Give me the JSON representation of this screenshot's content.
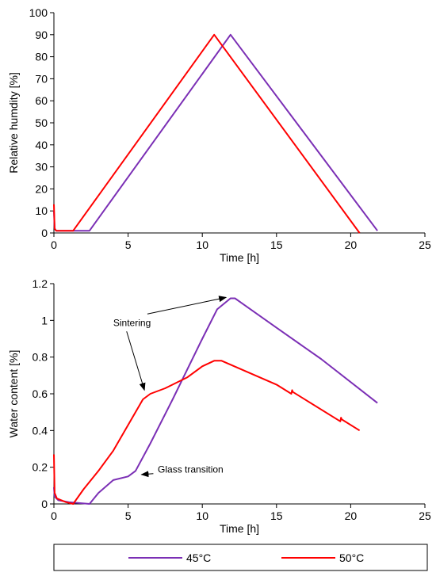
{
  "colors": {
    "c45": "#7b2fb5",
    "c50": "#ff0000"
  },
  "chart_data": [
    {
      "type": "line",
      "xlabel": "Time [h]",
      "ylabel": "Relative humdity [%]",
      "xlim": [
        0,
        25
      ],
      "ylim": [
        0,
        100
      ],
      "xticks": [
        "0",
        "5",
        "10",
        "15",
        "20",
        "25"
      ],
      "yticks": [
        "0",
        "10",
        "20",
        "30",
        "40",
        "50",
        "60",
        "70",
        "80",
        "90",
        "100"
      ],
      "grid": false,
      "series": [
        {
          "name": "45°C",
          "color": "#7b2fb5",
          "x": [
            0,
            0.05,
            0.15,
            2.4,
            11.9,
            21.8
          ],
          "y": [
            10,
            2,
            1,
            1,
            90,
            1
          ]
        },
        {
          "name": "50°C",
          "color": "#ff0000",
          "x": [
            0,
            0.05,
            0.15,
            1.3,
            10.8,
            20.6
          ],
          "y": [
            13,
            2,
            1,
            1,
            90,
            0
          ]
        }
      ]
    },
    {
      "type": "line",
      "xlabel": "Time [h]",
      "ylabel": "Water content [%]",
      "xlim": [
        0,
        25
      ],
      "ylim": [
        0,
        1.2
      ],
      "xticks": [
        "0",
        "5",
        "10",
        "15",
        "20",
        "25"
      ],
      "yticks": [
        "0",
        "0.2",
        "0.4",
        "0.6",
        "0.8",
        "1",
        "1.2"
      ],
      "grid": false,
      "series": [
        {
          "name": "45°C",
          "color": "#7b2fb5",
          "x": [
            0,
            0.05,
            0.3,
            1.0,
            2.4,
            3.0,
            4.0,
            5.0,
            5.5,
            6.5,
            8.0,
            10.0,
            11.0,
            11.9,
            12.2,
            15.0,
            18.0,
            21.8
          ],
          "y": [
            0.09,
            0.04,
            0.02,
            0.01,
            0.0,
            0.06,
            0.13,
            0.15,
            0.18,
            0.33,
            0.57,
            0.9,
            1.06,
            1.12,
            1.12,
            0.96,
            0.79,
            0.55
          ]
        },
        {
          "name": "50°C",
          "color": "#ff0000",
          "x": [
            0,
            0.05,
            0.2,
            0.8,
            1.3,
            2.0,
            3.0,
            4.0,
            5.0,
            6.0,
            6.5,
            7.5,
            9.0,
            10.0,
            10.8,
            11.3,
            13.0,
            15.0,
            16.0,
            16.05,
            16.1,
            19.3,
            19.35,
            19.4,
            20.6
          ],
          "y": [
            0.27,
            0.06,
            0.03,
            0.01,
            0.0,
            0.08,
            0.18,
            0.29,
            0.43,
            0.57,
            0.6,
            0.63,
            0.69,
            0.75,
            0.78,
            0.78,
            0.72,
            0.65,
            0.6,
            0.62,
            0.61,
            0.45,
            0.47,
            0.46,
            0.4
          ]
        }
      ],
      "annotations": [
        {
          "text": "Sintering",
          "x": 4.0,
          "y": 0.97,
          "arrows": [
            {
              "from": [
                6.3,
                1.035
              ],
              "to": [
                11.6,
                1.125
              ]
            },
            {
              "from": [
                4.9,
                0.94
              ],
              "to": [
                6.1,
                0.62
              ]
            }
          ]
        },
        {
          "text": "Glass transition",
          "x": 7.0,
          "y": 0.17,
          "arrows": [
            {
              "from": [
                6.7,
                0.165
              ],
              "to": [
                5.9,
                0.16
              ]
            }
          ]
        }
      ]
    }
  ],
  "legend": {
    "items": [
      "45°C",
      "50°C"
    ]
  }
}
